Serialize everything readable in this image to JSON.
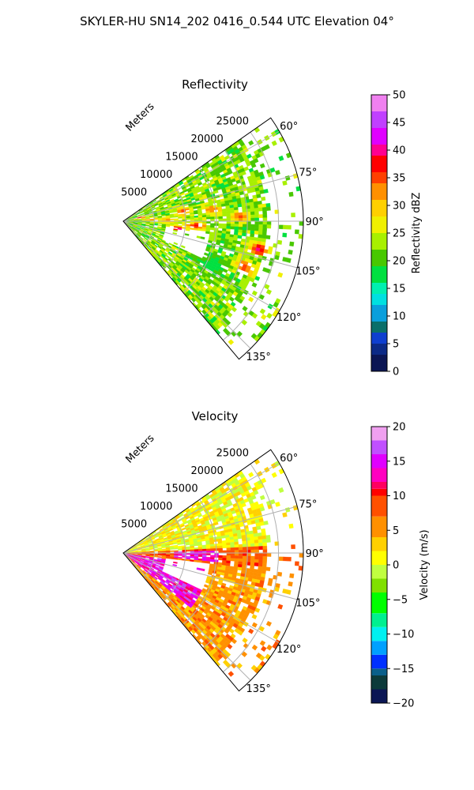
{
  "figure": {
    "suptitle": "SKYLER-HU  SN14_202  0416_0.544 UTC Elevation 04°"
  },
  "chart_data": [
    {
      "type": "heatmap",
      "projection": "polar-sector",
      "title": "Reflectivity",
      "radial_label": "Meters",
      "radial_ticks": [
        5000,
        10000,
        15000,
        20000,
        25000
      ],
      "radial_tick_labels": [
        "5000",
        "10000",
        "15000",
        "20000",
        "25000"
      ],
      "azimuth_ticks": [
        60,
        75,
        90,
        105,
        120,
        135
      ],
      "azimuth_tick_labels": [
        "60°",
        "75°",
        "90°",
        "105°",
        "120°",
        "135°"
      ],
      "azimuth_range": [
        55,
        140
      ],
      "range_max": 29000,
      "grid": true,
      "colorbar": {
        "label": "Reflectivity dBZ",
        "range": [
          0,
          50
        ],
        "ticks": [
          0,
          5,
          10,
          15,
          20,
          25,
          30,
          35,
          40,
          45,
          50
        ],
        "tick_labels": [
          "0",
          "5",
          "10",
          "15",
          "20",
          "25",
          "30",
          "35",
          "40",
          "45",
          "50"
        ],
        "stops": [
          [
            0,
            "#0b1654"
          ],
          [
            3,
            "#0c2a86"
          ],
          [
            5,
            "#0f3fcf"
          ],
          [
            7,
            "#0a6f6a"
          ],
          [
            9,
            "#0a9fdc"
          ],
          [
            12,
            "#00e0e0"
          ],
          [
            14,
            "#00f0b0"
          ],
          [
            16,
            "#00e040"
          ],
          [
            19,
            "#48c800"
          ],
          [
            22,
            "#a8f000"
          ],
          [
            25,
            "#f0f000"
          ],
          [
            28,
            "#ffd000"
          ],
          [
            31,
            "#ff9000"
          ],
          [
            34,
            "#ff4000"
          ],
          [
            36,
            "#ff0000"
          ],
          [
            39,
            "#ff0090"
          ],
          [
            41,
            "#e000ff"
          ],
          [
            44,
            "#c040ff"
          ],
          [
            47,
            "#f080f0"
          ],
          [
            50,
            "#fbe0fb"
          ]
        ]
      },
      "field": {
        "base": 22,
        "features": [
          {
            "az": 80,
            "r": 9500,
            "sa": 4,
            "sr": 1200,
            "v": 36
          },
          {
            "az": 82,
            "r": 14000,
            "sa": 3,
            "sr": 1500,
            "v": 34
          },
          {
            "az": 87,
            "r": 18500,
            "sa": 2.5,
            "sr": 1300,
            "v": 36
          },
          {
            "az": 88,
            "r": 7000,
            "sa": 4,
            "sr": 1500,
            "v": 32
          },
          {
            "az": 93,
            "r": 11500,
            "sa": 3,
            "sr": 1600,
            "v": 38
          },
          {
            "az": 97,
            "r": 8500,
            "sa": 2.5,
            "sr": 1200,
            "v": 41
          },
          {
            "az": 101,
            "r": 22000,
            "sa": 2.5,
            "sr": 1500,
            "v": 40
          },
          {
            "az": 110,
            "r": 20500,
            "sa": 3,
            "sr": 1600,
            "v": 36
          },
          {
            "az": 115,
            "r": 16000,
            "sa": 5,
            "sr": 2200,
            "v": 17
          },
          {
            "az": 86,
            "r": 4000,
            "sa": 3,
            "sr": 1000,
            "v": 34
          },
          {
            "az": 78,
            "r": 2500,
            "sa": 4,
            "sr": 900,
            "v": 37
          }
        ]
      }
    },
    {
      "type": "heatmap",
      "projection": "polar-sector",
      "title": "Velocity",
      "radial_label": "Meters",
      "radial_ticks": [
        5000,
        10000,
        15000,
        20000,
        25000
      ],
      "radial_tick_labels": [
        "5000",
        "10000",
        "15000",
        "20000",
        "25000"
      ],
      "azimuth_ticks": [
        60,
        75,
        90,
        105,
        120,
        135
      ],
      "azimuth_tick_labels": [
        "60°",
        "75°",
        "90°",
        "105°",
        "120°",
        "135°"
      ],
      "azimuth_range": [
        55,
        140
      ],
      "range_max": 29000,
      "grid": true,
      "colorbar": {
        "label": "Velocity (m/s)",
        "range": [
          -20,
          20
        ],
        "ticks": [
          -20,
          -15,
          -10,
          -5,
          0,
          5,
          10,
          15,
          20
        ],
        "tick_labels": [
          "−20",
          "−15",
          "−10",
          "−5",
          "0",
          "5",
          "10",
          "15",
          "20"
        ],
        "stops": [
          [
            -20,
            "#0b1654"
          ],
          [
            -18,
            "#0c3a3a"
          ],
          [
            -16,
            "#0a5f8a"
          ],
          [
            -15,
            "#0030ff"
          ],
          [
            -13,
            "#00a0ff"
          ],
          [
            -11,
            "#00f0f0"
          ],
          [
            -9,
            "#00f090"
          ],
          [
            -7,
            "#00ff00"
          ],
          [
            -4,
            "#80e000"
          ],
          [
            -2,
            "#c0ff40"
          ],
          [
            0,
            "#ffff00"
          ],
          [
            2,
            "#ffd000"
          ],
          [
            4,
            "#ff9000"
          ],
          [
            7,
            "#ff5000"
          ],
          [
            10,
            "#ff0000"
          ],
          [
            11,
            "#ff0060"
          ],
          [
            12,
            "#ff00c0"
          ],
          [
            14,
            "#e000ff"
          ],
          [
            16,
            "#c050ff"
          ],
          [
            18,
            "#f0a0f0"
          ],
          [
            20,
            "#fbe0fb"
          ]
        ]
      },
      "field": {
        "regions": [
          {
            "az": [
              55,
              86
            ],
            "r": [
              0,
              29000
            ],
            "v": 1
          },
          {
            "az": [
              86,
              96
            ],
            "r": [
              0,
              29000
            ],
            "v": 8
          },
          {
            "az": [
              96,
              140
            ],
            "r": [
              0,
              29000
            ],
            "v": 5
          },
          {
            "az": [
              98,
              128
            ],
            "r": [
              0,
              14000
            ],
            "v": 14
          },
          {
            "az": [
              88,
              95
            ],
            "r": [
              8000,
              15000
            ],
            "v": 14
          }
        ]
      }
    }
  ]
}
